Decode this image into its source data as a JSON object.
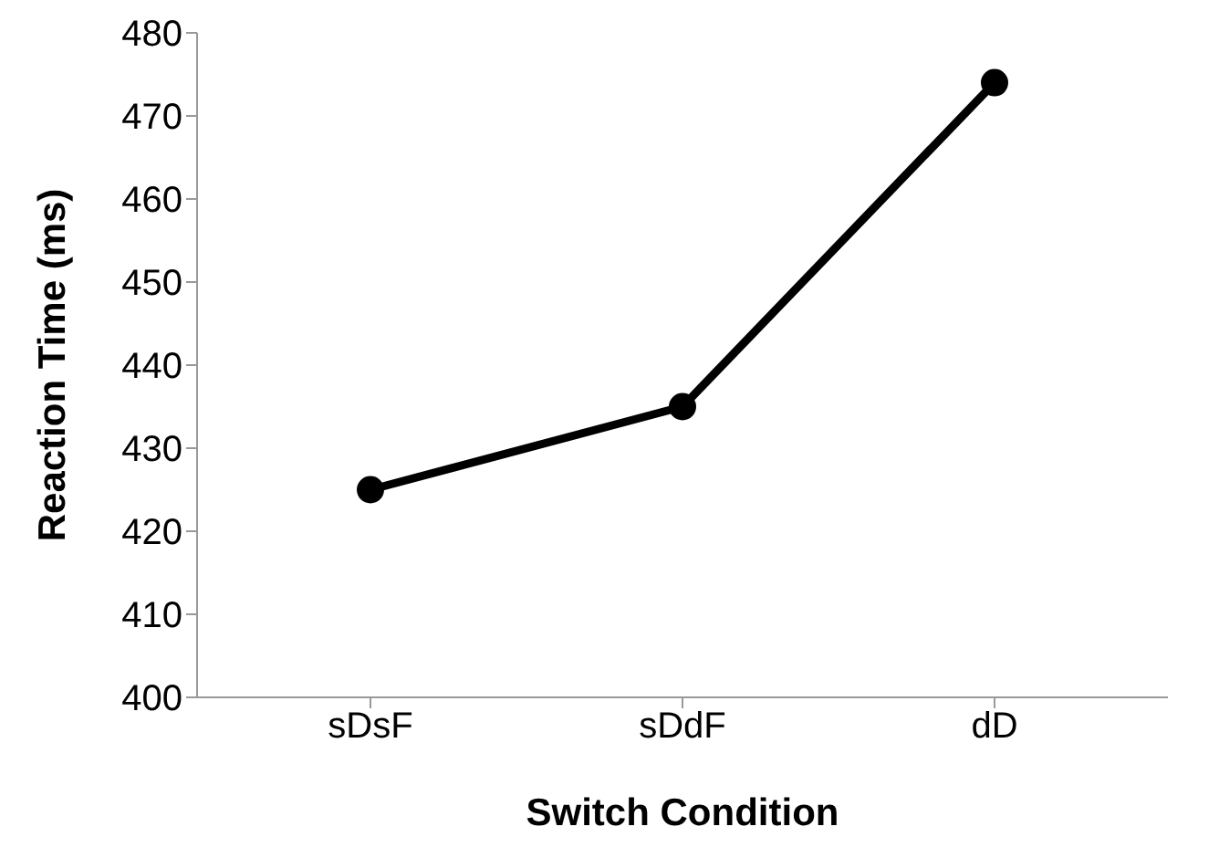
{
  "chart_data": {
    "type": "line",
    "xlabel": "Switch Condition",
    "ylabel": "Reaction Time (ms)",
    "categories": [
      "sDsF",
      "sDdF",
      "dD"
    ],
    "series": [
      {
        "color": "#000000",
        "values": [
          425,
          435,
          474
        ]
      }
    ],
    "ylim": [
      400,
      480
    ],
    "yticks": [
      400,
      410,
      420,
      430,
      440,
      450,
      460,
      470,
      480
    ],
    "grid": false,
    "legend": false,
    "marker": "circle",
    "line_style": "solid"
  }
}
